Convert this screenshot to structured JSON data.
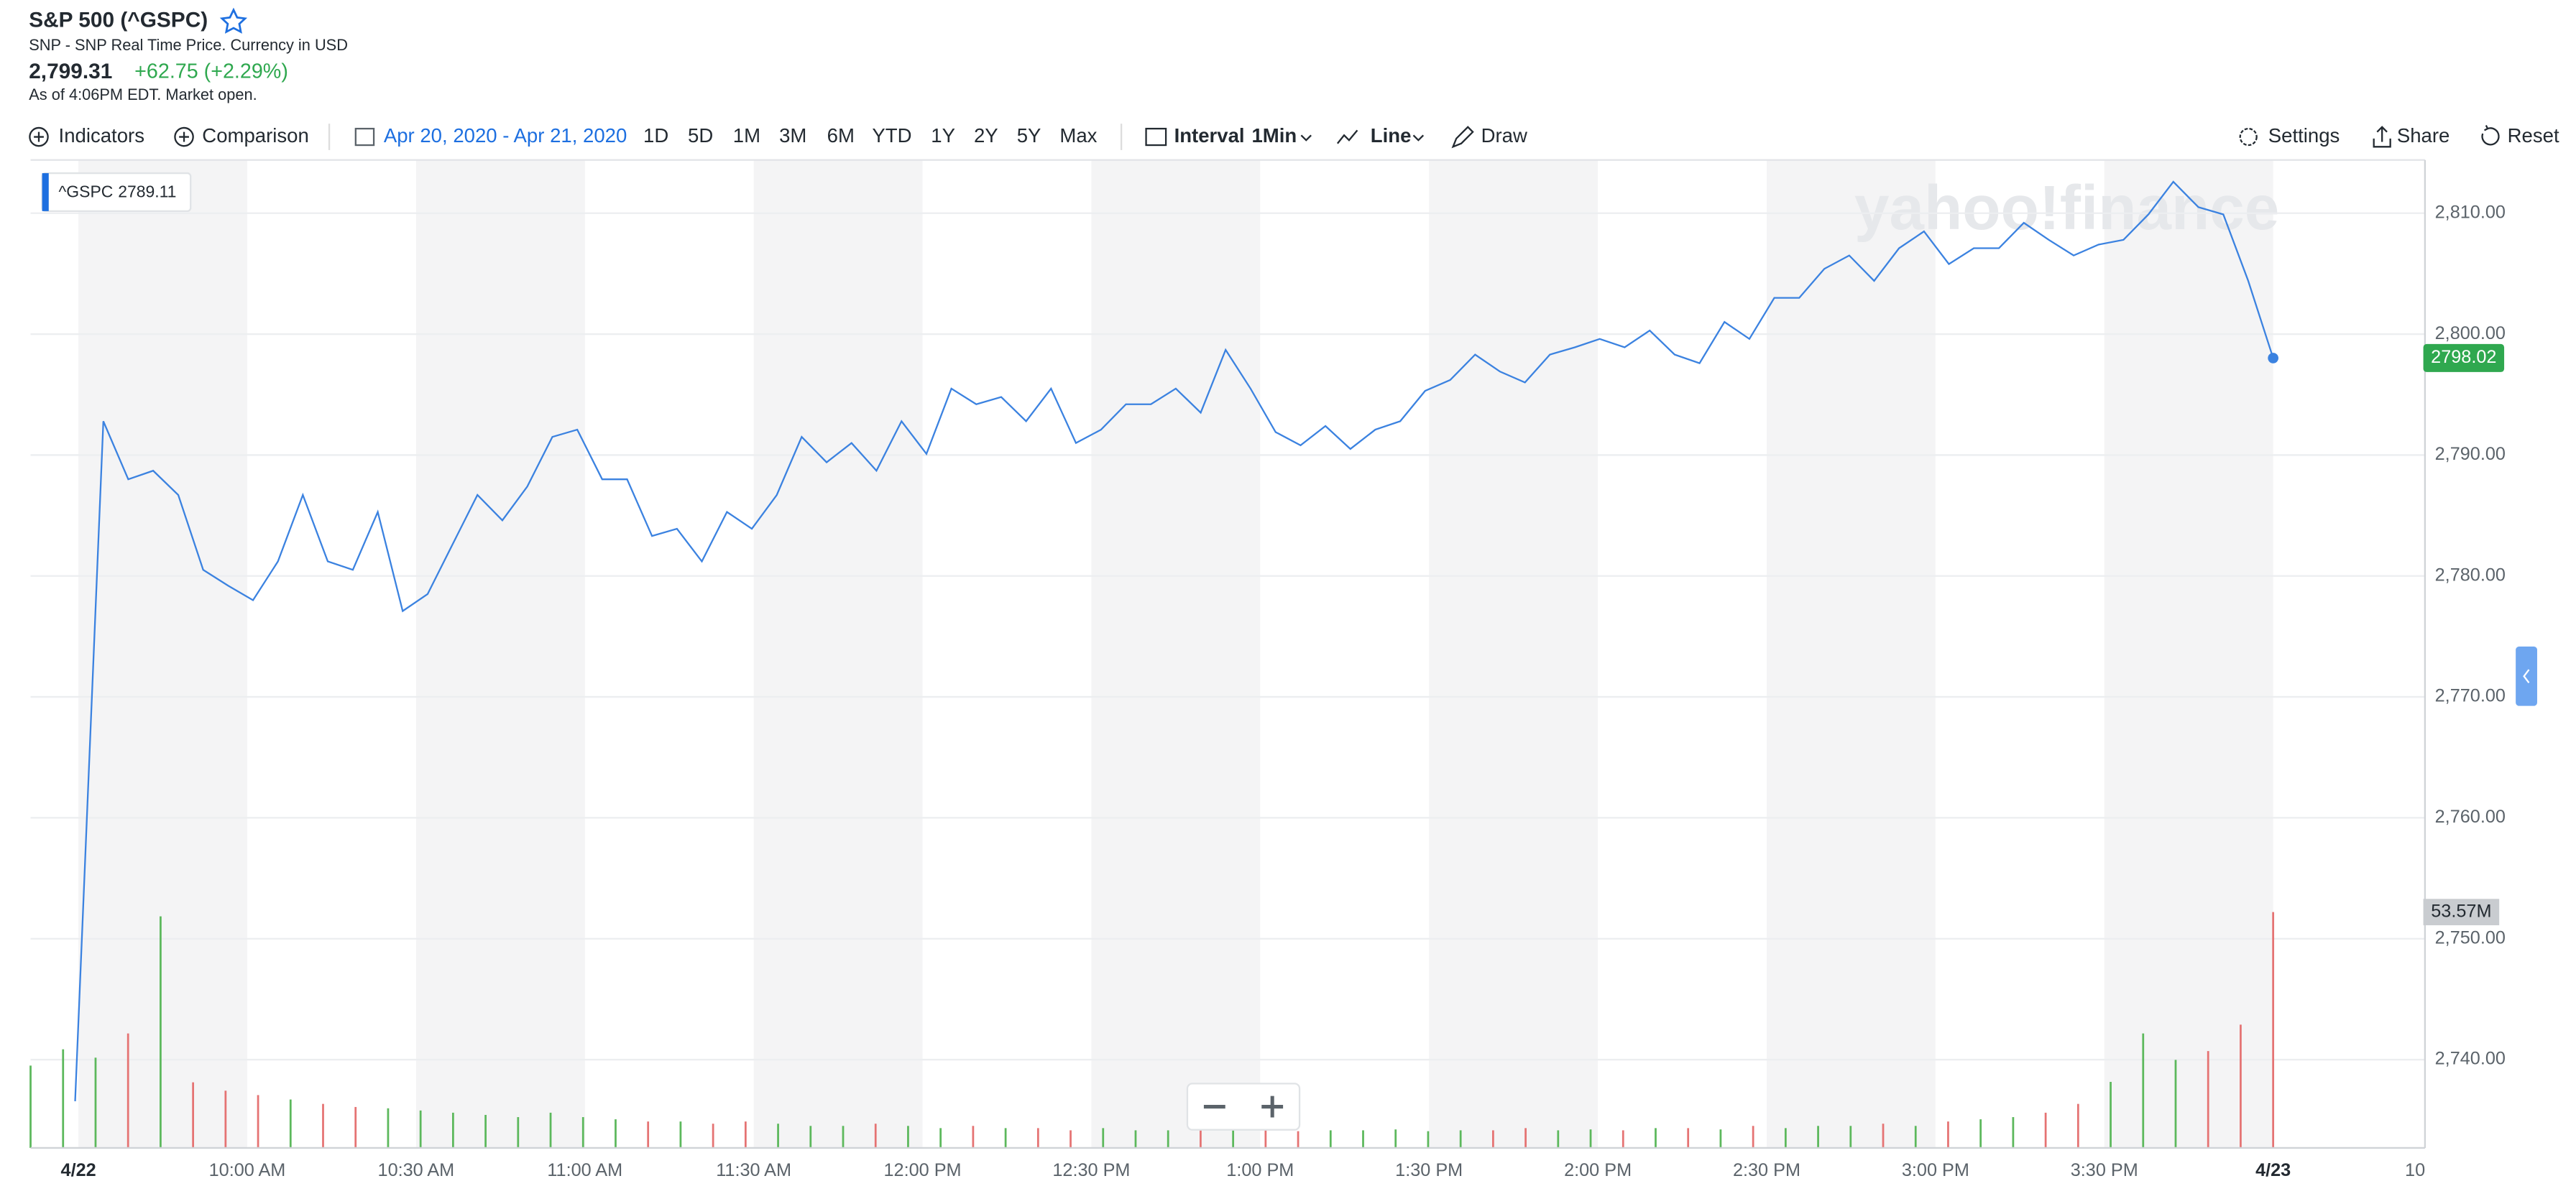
{
  "header": {
    "title": "S&P 500 (^GSPC)",
    "subtitle": "SNP - SNP Real Time Price. Currency in USD",
    "price": "2,799.31",
    "change": "+62.75 (+2.29%)",
    "status": "As of 4:06PM EDT. Market open."
  },
  "toolbar": {
    "indicators": "Indicators",
    "comparison": "Comparison",
    "date_range": "Apr 20, 2020 - Apr 21, 2020",
    "ranges": [
      "1D",
      "5D",
      "1M",
      "3M",
      "6M",
      "YTD",
      "1Y",
      "2Y",
      "5Y",
      "Max"
    ],
    "interval": "Interval",
    "interval_value": "1Min",
    "chart_type": "Line",
    "draw": "Draw",
    "settings": "Settings",
    "share": "Share",
    "reset": "Reset"
  },
  "chart_data": {
    "type": "line",
    "watermark": "yahoo!finance",
    "tooltip_value": "2789.11",
    "last_label": "2798.02",
    "x_labels": [
      "4/22",
      "10:00 AM",
      "10:30 AM",
      "11:00 AM",
      "11:30 AM",
      "12:00 PM",
      "12:30 PM",
      "1:00 PM",
      "1:30 PM",
      "2:00 PM",
      "2:30 PM",
      "3:00 PM",
      "3:30 PM",
      "4/23",
      "10"
    ],
    "series": [
      {
        "name": "^GSPC",
        "color": "#3b82e0",
        "values": [
          2736.56,
          2792.8,
          2788,
          2788.7,
          2786.7,
          2780.5,
          2779.2,
          2778,
          2781.2,
          2786.7,
          2781.2,
          2780.5,
          2785.3,
          2777.1,
          2778.5,
          2782.6,
          2786.7,
          2784.6,
          2787.4,
          2791.5,
          2792.1,
          2788,
          2788,
          2783.3,
          2783.9,
          2781.2,
          2785.3,
          2783.9,
          2786.7,
          2791.5,
          2789.4,
          2791,
          2788.7,
          2792.8,
          2790.1,
          2795.5,
          2794.2,
          2794.8,
          2792.8,
          2795.5,
          2791,
          2792.1,
          2794.2,
          2794.2,
          2795.5,
          2793.5,
          2798.7,
          2795.5,
          2791.9,
          2790.8,
          2792.4,
          2790.5,
          2792.1,
          2792.8,
          2795.3,
          2796.2,
          2798.3,
          2796.9,
          2796,
          2798.3,
          2798.9,
          2799.6,
          2798.9,
          2800.3,
          2798.3,
          2797.6,
          2801,
          2799.6,
          2803,
          2803,
          2805.4,
          2806.5,
          2804.4,
          2807.1,
          2808.5,
          2805.8,
          2807.1,
          2807.1,
          2809.2,
          2807.8,
          2806.5,
          2807.4,
          2807.8,
          2809.9,
          2812.6,
          2810.5,
          2809.9,
          2804.4,
          2798.02
        ]
      }
    ],
    "ylim": [
      2732.7,
      2814.4
    ],
    "yticks": [
      {
        "value": 2740,
        "label": "2,740.00"
      },
      {
        "value": 2750,
        "label": "2,750.00"
      },
      {
        "value": 2760,
        "label": "2,760.00"
      },
      {
        "value": 2770,
        "label": "2,770.00"
      },
      {
        "value": 2780,
        "label": "2,780.00"
      },
      {
        "value": 2790,
        "label": "2,790.00"
      },
      {
        "value": 2800,
        "label": "2,800.00"
      },
      {
        "value": 2810,
        "label": "2,810.00"
      }
    ],
    "grid": true,
    "volume": {
      "label": "53.57M",
      "up_color": "#5cb85c",
      "down_color": "#e57373",
      "values": [
        18.7,
        22.4,
        20.5,
        26,
        52.6,
        14.9,
        13,
        12,
        11,
        10,
        9.3,
        9,
        8.5,
        8,
        7.5,
        7,
        8,
        7,
        6.5,
        6,
        6,
        5.5,
        6,
        5.5,
        5,
        5,
        5.5,
        5,
        4.5,
        5,
        4.5,
        4.5,
        4,
        4.5,
        4,
        4,
        4.5,
        4,
        4,
        3.8,
        4,
        4,
        4.2,
        3.8,
        4,
        4,
        4.5,
        4,
        4.2,
        4,
        4.5,
        4.5,
        4.2,
        5,
        4.5,
        5,
        5,
        5.5,
        5,
        6,
        6.5,
        7,
        8,
        10,
        15,
        26,
        20,
        22,
        28,
        53.57
      ]
    }
  }
}
